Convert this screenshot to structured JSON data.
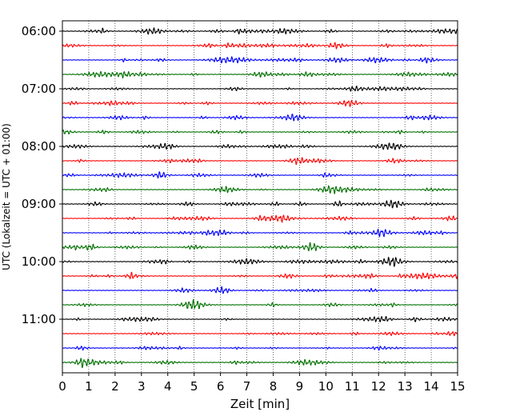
{
  "chart_data": {
    "type": "line",
    "title": "",
    "xlabel": "Zeit  [min]",
    "ylabel": "UTC (Lokalzeit = UTC + 01:00)",
    "xlim": [
      0,
      15
    ],
    "x_ticks": [
      "0",
      "1",
      "2",
      "3",
      "4",
      "5",
      "6",
      "7",
      "8",
      "9",
      "10",
      "11",
      "12",
      "13",
      "14",
      "15"
    ],
    "y_ticks": [
      "06:00",
      "07:00",
      "08:00",
      "09:00",
      "10:00",
      "11:00"
    ],
    "x_grid": true,
    "legend": "none",
    "trace_interval_minutes": 15,
    "trace_start": "06:00",
    "trace_count": 24,
    "trace_colors": [
      "#000000",
      "#ff0000",
      "#0000ff",
      "#007000"
    ]
  }
}
